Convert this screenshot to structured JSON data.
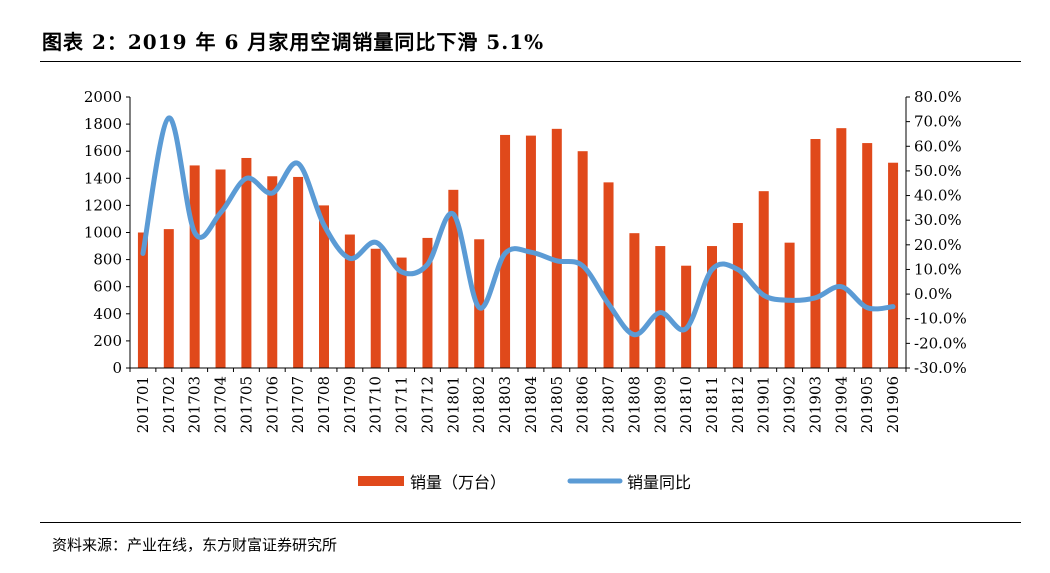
{
  "header": {
    "title": "图表 2：2019 年 6 月家用空调销量同比下滑 5.1%"
  },
  "footer": {
    "source": "资料来源：产业在线，东方财富证券研究所"
  },
  "colors": {
    "bar": "#E0491B",
    "line": "#5B9BD5",
    "axis": "#000000"
  },
  "chart_data": {
    "type": "bar",
    "categories": [
      "201701",
      "201702",
      "201703",
      "201704",
      "201705",
      "201706",
      "201707",
      "201708",
      "201709",
      "201710",
      "201711",
      "201712",
      "201801",
      "201802",
      "201803",
      "201804",
      "201805",
      "201806",
      "201807",
      "201808",
      "201809",
      "201810",
      "201811",
      "201812",
      "201901",
      "201902",
      "201903",
      "201904",
      "201905",
      "201906"
    ],
    "series": [
      {
        "name": "销量（万台）",
        "type": "bar",
        "axis": "left",
        "values": [
          1000,
          1025,
          1495,
          1465,
          1550,
          1415,
          1410,
          1200,
          985,
          880,
          815,
          960,
          1315,
          950,
          1720,
          1715,
          1765,
          1600,
          1370,
          995,
          900,
          755,
          900,
          1070,
          1305,
          925,
          1690,
          1770,
          1660,
          1515
        ]
      },
      {
        "name": "销量同比",
        "type": "line",
        "axis": "right",
        "values": [
          16.5,
          71.5,
          25.0,
          33.0,
          47.0,
          41.0,
          53.0,
          28.0,
          14.5,
          21.0,
          9.0,
          12.0,
          32.5,
          -5.5,
          16.5,
          17.0,
          13.5,
          11.5,
          -4.0,
          -16.5,
          -7.5,
          -14.0,
          10.0,
          10.0,
          -0.5,
          -2.5,
          -1.5,
          3.0,
          -5.5,
          -5.1
        ]
      }
    ],
    "y_left": {
      "ticks": [
        "0",
        "200",
        "400",
        "600",
        "800",
        "1000",
        "1200",
        "1400",
        "1600",
        "1800",
        "2000"
      ],
      "min": 0,
      "max": 2000
    },
    "y_right": {
      "ticks": [
        "-30.0%",
        "-20.0%",
        "-10.0%",
        "0.0%",
        "10.0%",
        "20.0%",
        "30.0%",
        "40.0%",
        "50.0%",
        "60.0%",
        "70.0%",
        "80.0%"
      ],
      "min": -30,
      "max": 80
    },
    "grid": false,
    "legend_position": "bottom"
  }
}
